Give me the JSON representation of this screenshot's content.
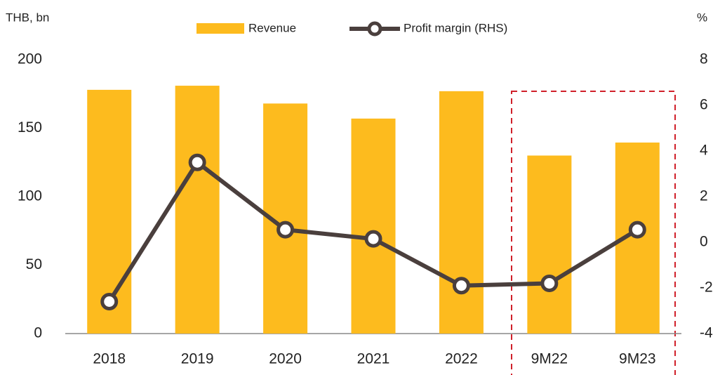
{
  "chart_data": {
    "type": "bar-line",
    "left_axis_label": "THB, bn",
    "right_axis_label": "%",
    "categories": [
      "2018",
      "2019",
      "2020",
      "2021",
      "2022",
      "9M22",
      "9M23"
    ],
    "series": [
      {
        "name": "Revenue",
        "type": "bar",
        "color": "#fdbb1e",
        "values": [
          178,
          181,
          168,
          157,
          177,
          130,
          139.5
        ]
      },
      {
        "name": "Profit margin (RHS)",
        "type": "line",
        "axis": "y2",
        "color": "#4a3f3d",
        "values": [
          -2.6,
          3.5,
          0.55,
          0.15,
          -1.9,
          -1.8,
          0.55
        ]
      }
    ],
    "ylim": [
      0,
      200
    ],
    "yticks": [
      0,
      50,
      100,
      150,
      200
    ],
    "y2lim": [
      -4,
      8
    ],
    "y2ticks": [
      -4,
      -2,
      0,
      2,
      4,
      6,
      8
    ],
    "grid": false
  }
}
